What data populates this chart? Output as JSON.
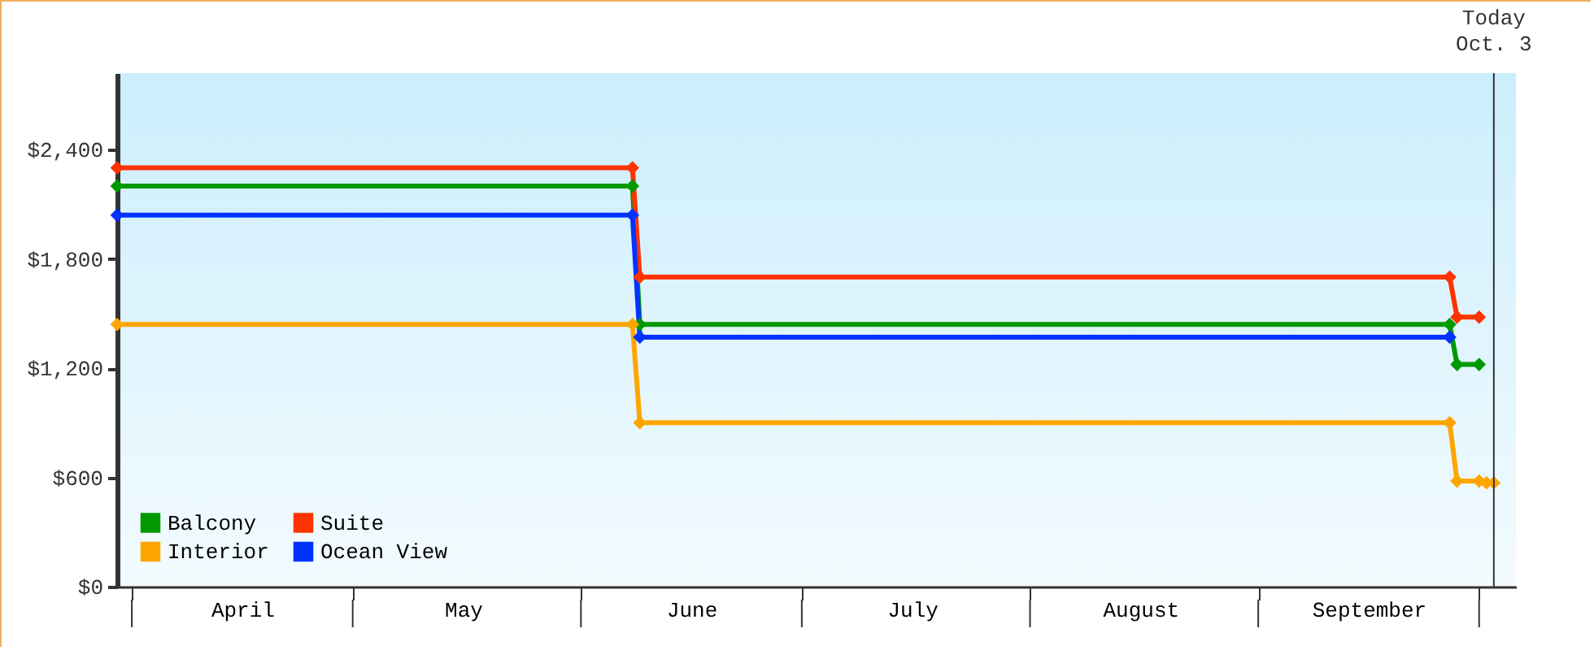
{
  "chart_data": {
    "type": "line",
    "marker": "diamond",
    "legend": "bottom left",
    "grid": false,
    "ylim": [
      0,
      2820
    ],
    "yticks": [
      {
        "value": 0,
        "label": "$0"
      },
      {
        "value": 600,
        "label": "$600"
      },
      {
        "value": 1200,
        "label": "$1,200"
      },
      {
        "value": 1800,
        "label": "$1,800"
      },
      {
        "value": 2400,
        "label": "$2,400"
      }
    ],
    "xlim": [
      "--03-30",
      "--10-06"
    ],
    "xticks": [
      {
        "value": "--04-01",
        "label": null
      },
      {
        "value": "--04-16",
        "label": "April"
      },
      {
        "value": "--05-01",
        "label": null
      },
      {
        "value": "--05-16",
        "label": "May"
      },
      {
        "value": "--06-01",
        "label": null
      },
      {
        "value": "--06-16",
        "label": "June"
      },
      {
        "value": "--07-01",
        "label": null
      },
      {
        "value": "--07-16",
        "label": "July"
      },
      {
        "value": "--08-01",
        "label": null
      },
      {
        "value": "--08-16",
        "label": "August"
      },
      {
        "value": "--09-01",
        "label": null
      },
      {
        "value": "--09-16",
        "label": "September"
      },
      {
        "value": "--10-01",
        "label": null
      }
    ],
    "series": [
      {
        "name": "Balcony",
        "color": "#009900",
        "x": [
          "--03-30",
          "--06-08",
          "--06-09",
          "--09-27",
          "--09-28",
          "--10-01"
        ],
        "values": [
          2200,
          2200,
          1440,
          1440,
          1220,
          1220
        ]
      },
      {
        "name": "Suite",
        "color": "#ff3300",
        "x": [
          "--03-30",
          "--06-08",
          "--06-09",
          "--09-27",
          "--09-28",
          "--10-01"
        ],
        "values": [
          2300,
          2300,
          1700,
          1700,
          1480,
          1480
        ]
      },
      {
        "name": "Interior",
        "color": "#ffa500",
        "x": [
          "--03-30",
          "--06-08",
          "--06-09",
          "--09-27",
          "--09-28",
          "--10-01",
          "--10-02",
          "--10-03"
        ],
        "values": [
          1440,
          1440,
          900,
          900,
          580,
          580,
          570,
          570
        ]
      },
      {
        "name": "Ocean View",
        "color": "#0033ff",
        "x": [
          "--03-30",
          "--06-08",
          "--06-09",
          "--09-27"
        ],
        "values": [
          2040,
          2040,
          1370,
          1370
        ]
      }
    ],
    "ref_lines": [
      {
        "axis": "x",
        "value": "--10-03",
        "label": "Today\nOct. 3"
      }
    ]
  }
}
